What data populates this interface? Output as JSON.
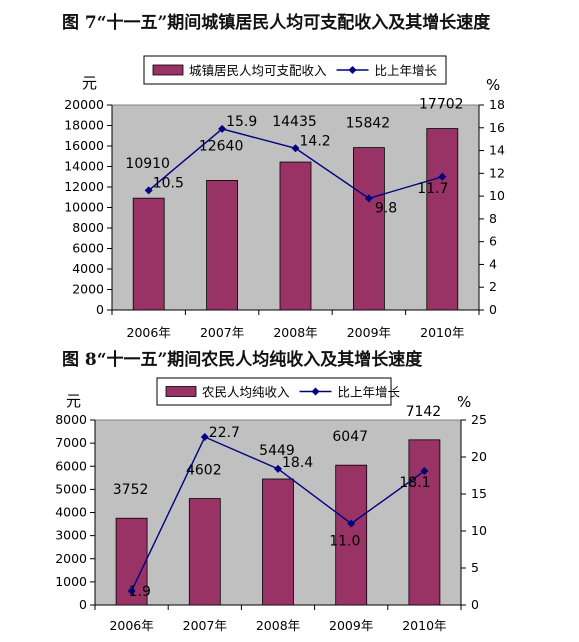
{
  "figures": [
    {
      "title": "图 7“十一五”期间城镇居民人均可支配收入及其增长速度"
    },
    {
      "title": "图 8“十一五”期间农民人均纯收入及其增长速度"
    }
  ],
  "chart_data": [
    {
      "type": "bar",
      "title": "图 7“十一五”期间城镇居民人均可支配收入及其增长速度",
      "categories": [
        "2006年",
        "2007年",
        "2008年",
        "2009年",
        "2010年"
      ],
      "series": [
        {
          "name": "城镇居民人均可支配收入",
          "type": "bar",
          "axis": "left",
          "values": [
            10910,
            12640,
            14435,
            15842,
            17702
          ],
          "color": "#993366"
        },
        {
          "name": "比上年增长",
          "type": "line",
          "axis": "right",
          "values": [
            10.5,
            15.9,
            14.2,
            9.8,
            11.7
          ],
          "color": "#000080"
        }
      ],
      "ylabel": "元",
      "ylim": [
        0,
        20000
      ],
      "yticks": [
        0,
        2000,
        4000,
        6000,
        8000,
        10000,
        12000,
        14000,
        16000,
        18000,
        20000
      ],
      "y2label": "%",
      "y2lim": [
        0,
        18
      ],
      "y2ticks": [
        0,
        2,
        4,
        6,
        8,
        10,
        12,
        14,
        16,
        18
      ],
      "legend_position": "top",
      "plot_background": "#c0c0c0"
    },
    {
      "type": "bar",
      "title": "图 8“十一五”期间农民人均纯收入及其增长速度",
      "categories": [
        "2006年",
        "2007年",
        "2008年",
        "2009年",
        "2010年"
      ],
      "series": [
        {
          "name": "农民人均纯收入",
          "type": "bar",
          "axis": "left",
          "values": [
            3752,
            4602,
            5449,
            6047,
            7142
          ],
          "color": "#993366"
        },
        {
          "name": "比上年增长",
          "type": "line",
          "axis": "right",
          "values": [
            1.9,
            22.7,
            18.4,
            11.0,
            18.1
          ],
          "color": "#000080"
        }
      ],
      "ylabel": "元",
      "ylim": [
        0,
        8000
      ],
      "yticks": [
        0,
        1000,
        2000,
        3000,
        4000,
        5000,
        6000,
        7000,
        8000
      ],
      "y2label": "%",
      "y2lim": [
        0,
        25
      ],
      "y2ticks": [
        0,
        5,
        10,
        15,
        20,
        25
      ],
      "legend_position": "top",
      "plot_background": "#c0c0c0"
    }
  ]
}
